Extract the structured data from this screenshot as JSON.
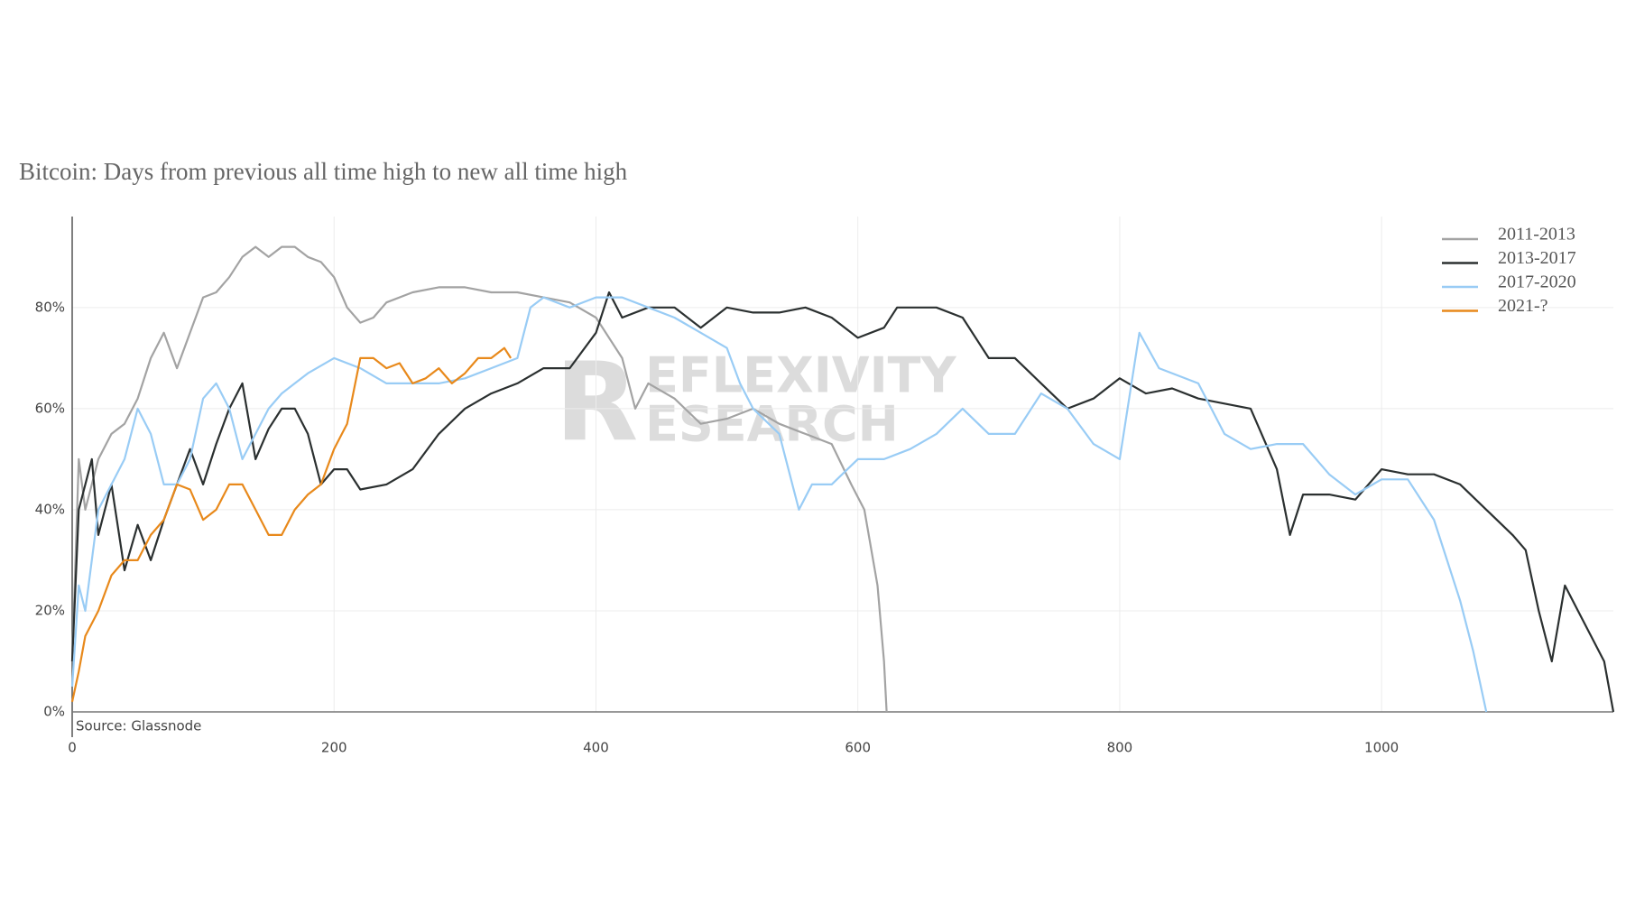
{
  "chart_data": {
    "type": "line",
    "title": "Bitcoin: Days from previous all time high to new all time high",
    "annotation": "Source: Glassnode",
    "watermark": [
      "R",
      "EFLEXIVITY",
      "ESEARCH"
    ],
    "xlim": [
      0,
      1177
    ],
    "xticks": [
      0,
      200,
      400,
      600,
      800,
      1000
    ],
    "ylim": [
      0,
      98
    ],
    "yticks": [
      {
        "value": 0,
        "label": "0%"
      },
      {
        "value": 20,
        "label": "20%"
      },
      {
        "value": 40,
        "label": "40%"
      },
      {
        "value": 60,
        "label": "60%"
      },
      {
        "value": 80,
        "label": "80%"
      }
    ],
    "grid": true,
    "legend": "top-right",
    "series": [
      {
        "name": "2011-2013",
        "color": "#a3a3a3",
        "x": [
          0,
          5,
          10,
          20,
          30,
          40,
          50,
          60,
          70,
          80,
          90,
          100,
          110,
          120,
          130,
          140,
          150,
          160,
          170,
          180,
          190,
          200,
          210,
          220,
          230,
          240,
          260,
          280,
          300,
          320,
          340,
          360,
          380,
          400,
          420,
          430,
          440,
          460,
          480,
          500,
          520,
          540,
          560,
          580,
          595,
          605,
          615,
          620,
          622
        ],
        "values": [
          10,
          50,
          40,
          50,
          55,
          57,
          62,
          70,
          75,
          68,
          75,
          82,
          83,
          86,
          90,
          92,
          90,
          92,
          92,
          90,
          89,
          86,
          80,
          77,
          78,
          81,
          83,
          84,
          84,
          83,
          83,
          82,
          81,
          78,
          70,
          60,
          65,
          62,
          57,
          58,
          60,
          57,
          55,
          53,
          45,
          40,
          25,
          10,
          0
        ]
      },
      {
        "name": "2013-2017",
        "color": "#2b3030",
        "x": [
          0,
          5,
          15,
          20,
          30,
          40,
          50,
          60,
          70,
          80,
          90,
          100,
          110,
          120,
          130,
          140,
          150,
          160,
          170,
          180,
          190,
          200,
          210,
          220,
          240,
          260,
          280,
          300,
          320,
          340,
          360,
          380,
          400,
          410,
          420,
          440,
          460,
          480,
          500,
          520,
          540,
          560,
          580,
          600,
          620,
          630,
          640,
          660,
          680,
          700,
          720,
          740,
          760,
          780,
          800,
          820,
          840,
          860,
          880,
          900,
          920,
          930,
          940,
          960,
          980,
          1000,
          1020,
          1040,
          1060,
          1080,
          1100,
          1110,
          1120,
          1130,
          1140,
          1150,
          1160,
          1170,
          1177
        ],
        "values": [
          10,
          40,
          50,
          35,
          45,
          28,
          37,
          30,
          38,
          45,
          52,
          45,
          53,
          60,
          65,
          50,
          56,
          60,
          60,
          55,
          45,
          48,
          48,
          44,
          45,
          48,
          55,
          60,
          63,
          65,
          68,
          68,
          75,
          83,
          78,
          80,
          80,
          76,
          80,
          79,
          79,
          80,
          78,
          74,
          76,
          80,
          80,
          80,
          78,
          70,
          70,
          65,
          60,
          62,
          66,
          63,
          64,
          62,
          61,
          60,
          48,
          35,
          43,
          43,
          42,
          48,
          47,
          47,
          45,
          40,
          35,
          32,
          20,
          10,
          25,
          20,
          15,
          10,
          0
        ]
      },
      {
        "name": "2017-2020",
        "color": "#99ccf5",
        "x": [
          0,
          5,
          10,
          20,
          30,
          40,
          50,
          60,
          70,
          80,
          90,
          100,
          110,
          120,
          130,
          140,
          150,
          160,
          170,
          180,
          200,
          220,
          240,
          260,
          280,
          300,
          320,
          340,
          350,
          360,
          380,
          400,
          420,
          440,
          460,
          480,
          500,
          510,
          520,
          540,
          555,
          565,
          580,
          600,
          620,
          640,
          660,
          680,
          700,
          720,
          740,
          760,
          780,
          800,
          815,
          830,
          860,
          880,
          900,
          920,
          940,
          960,
          980,
          1000,
          1020,
          1040,
          1050,
          1060,
          1070,
          1080
        ],
        "values": [
          5,
          25,
          20,
          40,
          45,
          50,
          60,
          55,
          45,
          45,
          50,
          62,
          65,
          60,
          50,
          55,
          60,
          63,
          65,
          67,
          70,
          68,
          65,
          65,
          65,
          66,
          68,
          70,
          80,
          82,
          80,
          82,
          82,
          80,
          78,
          75,
          72,
          65,
          60,
          55,
          40,
          45,
          45,
          50,
          50,
          52,
          55,
          60,
          55,
          55,
          63,
          60,
          53,
          50,
          75,
          68,
          65,
          55,
          52,
          53,
          53,
          47,
          43,
          46,
          46,
          38,
          30,
          22,
          12,
          0
        ]
      },
      {
        "name": "2021-?",
        "color": "#e8891b",
        "x": [
          0,
          5,
          10,
          20,
          30,
          40,
          50,
          60,
          70,
          80,
          90,
          100,
          110,
          120,
          130,
          140,
          150,
          160,
          170,
          180,
          190,
          200,
          210,
          220,
          230,
          240,
          250,
          260,
          270,
          280,
          290,
          300,
          310,
          320,
          330,
          335
        ],
        "values": [
          2,
          8,
          15,
          20,
          27,
          30,
          30,
          35,
          38,
          45,
          44,
          38,
          40,
          45,
          45,
          40,
          35,
          35,
          40,
          43,
          45,
          52,
          57,
          70,
          70,
          68,
          69,
          65,
          66,
          68,
          65,
          67,
          70,
          70,
          72,
          70
        ]
      }
    ]
  }
}
